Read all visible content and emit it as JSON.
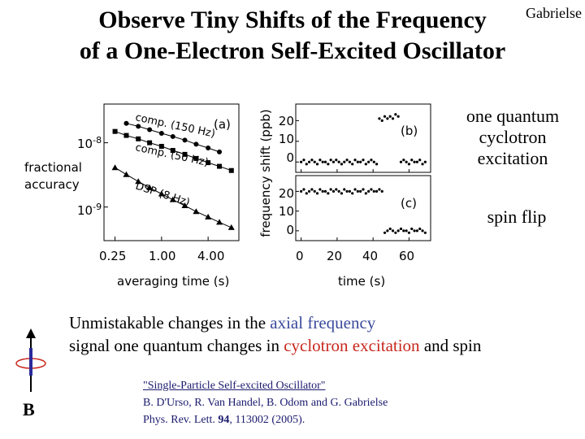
{
  "header": {
    "title_line1": "Observe Tiny Shifts of the Frequency",
    "title_line2": "of a One-Electron Self-Excited Oscillator",
    "author": "Gabrielse"
  },
  "left_plot": {
    "ytick_upper": "10",
    "ytick_upper_exp": "-8",
    "ytick_lower": "10",
    "ytick_lower_exp": "-9",
    "ylabel_line1": "fractional",
    "ylabel_line2": "accuracy",
    "xticks": [
      "0.25",
      "1.00",
      "4.00"
    ],
    "xlabel": "averaging time (s)",
    "panel_label": "(a)",
    "series_labels": [
      "comp. (150 Hz)",
      "comp. (50 Hz)",
      "DSP (8 Hz)"
    ]
  },
  "right_plot": {
    "ylabel": "frequency shift (ppb)",
    "b_ticks": [
      "20",
      "10",
      "0"
    ],
    "c_ticks": [
      "20",
      "10",
      "0"
    ],
    "xticks": [
      "0",
      "20",
      "40",
      "60"
    ],
    "xlabel": "time (s)",
    "label_b": "(b)",
    "label_c": "(c)"
  },
  "annotations": {
    "cyclotron_line1": "one quantum",
    "cyclotron_line2": "cyclotron",
    "cyclotron_line3": "excitation",
    "spin_flip": "spin flip"
  },
  "caption": {
    "p1": "Unmistakable changes in the ",
    "axial": "axial frequency",
    "p2": "signal one quantum changes in ",
    "cyclotron": "cyclotron excitation",
    "p3": " and spin"
  },
  "colors": {
    "axial": "#3a4a9c",
    "cyclotron": "#c8281e",
    "reference": "#1a1a6e",
    "spin_arrow": "#2a2a9a",
    "orbit": "#c8281e"
  },
  "field_label": "B",
  "reference": {
    "title": "\"Single-Particle Self-excited Oscillator\"",
    "authors": "B. D'Urso, R. Van Handel, B. Odom and G. Gabrielse",
    "journal_pre": "Phys. Rev. Lett. ",
    "volume": "94",
    "journal_post": ", 113002 (2005)."
  },
  "chart_data": [
    {
      "type": "scatter",
      "panel": "(a)",
      "xlabel": "averaging time (s)",
      "ylabel": "fractional accuracy",
      "xscale": "log",
      "yscale": "log",
      "xticks": [
        0.25,
        1.0,
        4.0
      ],
      "xlim": [
        0.18,
        10.0
      ],
      "ylim": [
        3e-10,
        4e-08
      ],
      "series": [
        {
          "name": "comp. (150 Hz)",
          "marker": "circle",
          "x": [
            0.35,
            0.5,
            0.7,
            1.0,
            1.4,
            2.0,
            2.8,
            4.0,
            5.6
          ],
          "y": [
            2e-08,
            1.8e-08,
            1.6e-08,
            1.4e-08,
            1.25e-08,
            1.1e-08,
            9.5e-09,
            8.3e-09,
            7.2e-09
          ]
        },
        {
          "name": "comp. (50 Hz)",
          "marker": "square",
          "x": [
            0.25,
            0.35,
            0.5,
            0.7,
            1.0,
            1.4,
            2.0,
            2.8,
            4.0,
            5.6,
            8.0
          ],
          "y": [
            1.5e-08,
            1.3e-08,
            1.15e-08,
            1e-08,
            8.8e-09,
            7.6e-09,
            6.6e-09,
            5.7e-09,
            4.9e-09,
            4.3e-09,
            3.7e-09
          ]
        },
        {
          "name": "DSP (8 Hz)",
          "marker": "triangle",
          "x": [
            0.25,
            0.35,
            0.5,
            0.7,
            1.0,
            1.4,
            2.0,
            2.8,
            4.0,
            5.6,
            8.0
          ],
          "y": [
            4.1e-09,
            3.2e-09,
            2.5e-09,
            2e-09,
            1.6e-09,
            1.3e-09,
            1.05e-09,
            8.5e-10,
            7e-10,
            5.8e-10,
            4.8e-10
          ]
        }
      ]
    },
    {
      "type": "scatter",
      "panel": "(b)",
      "ylabel": "frequency shift (ppb)",
      "xlim": [
        -3,
        72
      ],
      "ylim": [
        -5,
        28
      ],
      "x": [
        0,
        1.5,
        3,
        4.5,
        6,
        7.5,
        9,
        10.5,
        12,
        13.5,
        15,
        16.5,
        18,
        19.5,
        21,
        22.5,
        24,
        25.5,
        27,
        28.5,
        30,
        31.5,
        33,
        34.5,
        36,
        37.5,
        39,
        40.5,
        42,
        43.5,
        45,
        46.5,
        48,
        49.5,
        51,
        52.5,
        54,
        55.5,
        57,
        58.5,
        60,
        61.5,
        63,
        64.5,
        66,
        67.5,
        69
      ],
      "y": [
        0,
        1,
        -1,
        0,
        1,
        0,
        -1,
        1,
        0,
        0,
        -1,
        1,
        0,
        1,
        0,
        -1,
        0,
        1,
        0,
        -1,
        1,
        0,
        0,
        1,
        -1,
        0,
        1,
        0,
        -1,
        21,
        20,
        22,
        21,
        22,
        21,
        23,
        22,
        0,
        1,
        0,
        -1,
        1,
        0,
        0,
        1,
        -1,
        0
      ]
    },
    {
      "type": "scatter",
      "panel": "(c)",
      "xlabel": "time (s)",
      "ylabel": "frequency shift (ppb)",
      "xticks": [
        0,
        20,
        40,
        60
      ],
      "xlim": [
        -3,
        72
      ],
      "ylim": [
        -5,
        28
      ],
      "x": [
        0,
        1.5,
        3,
        4.5,
        6,
        7.5,
        9,
        10.5,
        12,
        13.5,
        15,
        16.5,
        18,
        19.5,
        21,
        22.5,
        24,
        25.5,
        27,
        28.5,
        30,
        31.5,
        33,
        34.5,
        36,
        37.5,
        39,
        40.5,
        42,
        43.5,
        45,
        46.5,
        48,
        49.5,
        51,
        52.5,
        54,
        55.5,
        57,
        58.5,
        60,
        61.5,
        63,
        64.5,
        66,
        67.5,
        69
      ],
      "y": [
        20,
        21,
        19,
        20,
        21,
        20,
        19,
        21,
        20,
        20,
        19,
        21,
        20,
        21,
        20,
        19,
        21,
        20,
        20,
        19,
        21,
        20,
        20,
        21,
        19,
        20,
        21,
        20,
        20,
        21,
        20,
        -1,
        0,
        1,
        0,
        -1,
        0,
        1,
        0,
        0,
        -1,
        1,
        0,
        0,
        1,
        0,
        -1
      ]
    }
  ]
}
